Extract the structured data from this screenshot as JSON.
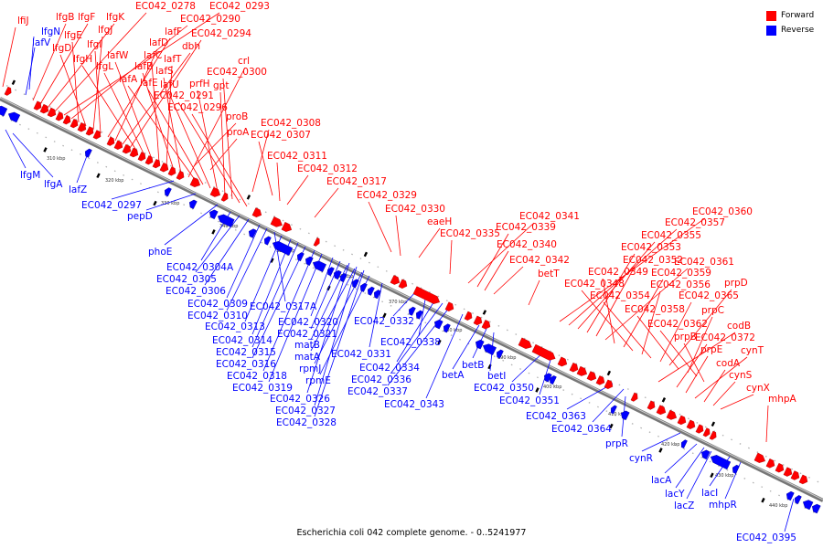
{
  "caption": "Escherichia coli 042 complete genome. - 0..5241977",
  "legend": [
    {
      "label": "Forward",
      "color": "#ff0000"
    },
    {
      "label": "Reverse",
      "color": "#0000ff"
    }
  ],
  "colors": {
    "forward": "#ff0000",
    "reverse": "#0000ff",
    "backbone": "#777777"
  },
  "ticks": [
    {
      "label": "310 kbp"
    },
    {
      "label": "320 kbp"
    },
    {
      "label": "330 kbp"
    },
    {
      "label": "340 kbp"
    },
    {
      "label": "350 kbp"
    },
    {
      "label": "360 kbp"
    },
    {
      "label": "370 kbp"
    },
    {
      "label": "380 kbp"
    },
    {
      "label": "390 kbp"
    },
    {
      "label": "400 kbp"
    },
    {
      "label": "410 kbp"
    },
    {
      "label": "420 kbp"
    },
    {
      "label": "430 kbp"
    },
    {
      "label": "440 kbp"
    }
  ],
  "forward_labels": [
    "lfiJ",
    "lfgB",
    "lfgF",
    "lfgK",
    "EC042_0278",
    "EC042_0293",
    "EC042_0290",
    "lfgE",
    "lfgD",
    "lfgJ",
    "lfgI",
    "lafF",
    "lafD",
    "dbh",
    "EC042_0294",
    "lfgH",
    "lfgL",
    "lafW",
    "lafC",
    "lafT",
    "lafB",
    "lafS",
    "crl",
    "lafA",
    "lafE",
    "lafU",
    "prfH",
    "gpt",
    "EC042_0300",
    "EC042_0291",
    "EC042_0296",
    "proB",
    "proA",
    "EC042_0308",
    "EC042_0307",
    "EC042_0311",
    "EC042_0312",
    "EC042_0317",
    "EC042_0329",
    "EC042_0330",
    "eaeH",
    "EC042_0335",
    "EC042_0341",
    "EC042_0339",
    "EC042_0340",
    "EC042_0342",
    "betT",
    "EC042_0360",
    "EC042_0357",
    "EC042_0355",
    "EC042_0353",
    "EC042_0352",
    "EC042_0361",
    "EC042_0349",
    "EC042_0359",
    "EC042_0348",
    "EC042_0356",
    "EC042_0354",
    "EC042_0365",
    "prpD",
    "EC042_0358",
    "prpC",
    "EC042_0362",
    "codB",
    "prpB",
    "EC042_0372",
    "prpE",
    "cynT",
    "codA",
    "cynS",
    "cynX",
    "mhpA"
  ],
  "reverse_labels": [
    "lfgN",
    "lafV",
    "lfgM",
    "lfgA",
    "lafZ",
    "EC042_0297",
    "pepD",
    "phoE",
    "EC042_0304A",
    "EC042_0305",
    "EC042_0306",
    "EC042_0309",
    "EC042_0317A",
    "EC042_0310",
    "EC042_0313",
    "EC042_0314",
    "EC042_0315",
    "EC042_0316",
    "EC042_0318",
    "EC042_0319",
    "EC042_0326",
    "EC042_0327",
    "EC042_0328",
    "EC042_0320",
    "EC042_0321",
    "matB",
    "matA",
    "rpmJ",
    "rpmE",
    "EC042_0331",
    "EC042_0332",
    "EC042_0338",
    "EC042_0334",
    "EC042_0336",
    "EC042_0337",
    "EC042_0343",
    "betA",
    "betB",
    "betI",
    "EC042_0350",
    "EC042_0351",
    "EC042_0363",
    "EC042_0364",
    "prpR",
    "cynR",
    "lacA",
    "lacY",
    "lacZ",
    "lacI",
    "mhpR",
    "EC042_0395"
  ]
}
